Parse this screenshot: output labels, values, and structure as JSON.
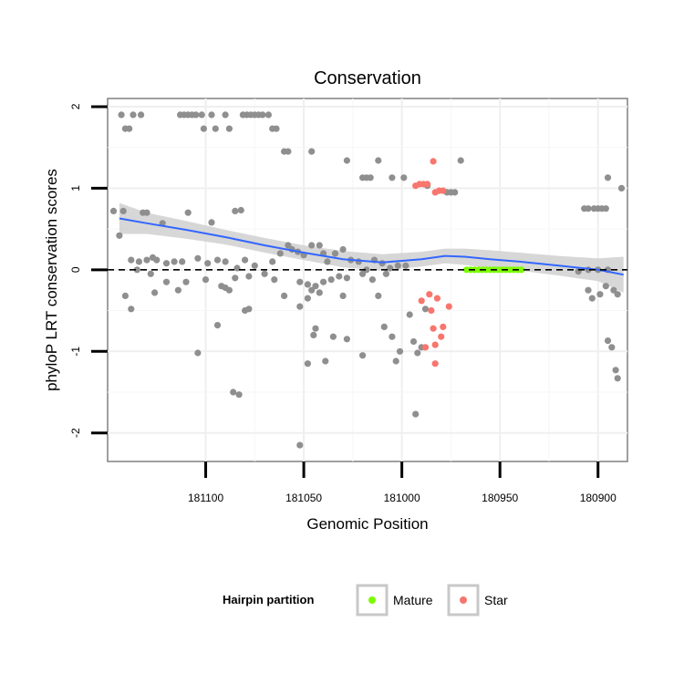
{
  "chart_data": {
    "type": "scatter",
    "title": "Conservation",
    "xlabel": "Genomic Position",
    "ylabel": "phyloP LRT conservation scores",
    "x_reversed": true,
    "xlim": [
      181150,
      180885
    ],
    "ylim": [
      -2.35,
      2.1
    ],
    "x_ticks": [
      181100,
      181050,
      181000,
      180950,
      180900
    ],
    "y_ticks": [
      -2,
      -1,
      0,
      1,
      2
    ],
    "reference_line": {
      "y": 0,
      "style": "dashed"
    },
    "legend": {
      "title": "Hairpin partition",
      "position": "bottom",
      "entries": [
        {
          "label": "Mature",
          "color": "#7CFC00"
        },
        {
          "label": "Star",
          "color": "#F8766D"
        }
      ]
    },
    "colors": {
      "other": "#8f8f8f",
      "mature": "#7CFC00",
      "star": "#F8766D",
      "smooth_line": "#3366FF",
      "ribbon": "#d0d0d0"
    },
    "smooth": {
      "x": [
        181144,
        181130,
        181110,
        181090,
        181070,
        181050,
        181030,
        181010,
        180990,
        180978,
        180968,
        180955,
        180940,
        180920,
        180900,
        180887
      ],
      "y": [
        0.63,
        0.57,
        0.49,
        0.4,
        0.3,
        0.21,
        0.13,
        0.09,
        0.13,
        0.17,
        0.16,
        0.13,
        0.1,
        0.05,
        0.0,
        -0.06
      ],
      "lower": [
        0.44,
        0.44,
        0.38,
        0.31,
        0.21,
        0.12,
        0.03,
        -0.01,
        0.04,
        0.08,
        0.06,
        0.02,
        -0.01,
        -0.07,
        -0.14,
        -0.28
      ],
      "upper": [
        0.82,
        0.7,
        0.6,
        0.49,
        0.39,
        0.3,
        0.23,
        0.19,
        0.22,
        0.26,
        0.26,
        0.24,
        0.21,
        0.17,
        0.14,
        0.16
      ]
    },
    "series": [
      {
        "name": "Other",
        "points": [
          [
            181143,
            1.9
          ],
          [
            181141,
            1.73
          ],
          [
            181139,
            1.73
          ],
          [
            181137,
            1.9
          ],
          [
            181133,
            1.9
          ],
          [
            181113,
            1.9
          ],
          [
            181111,
            1.9
          ],
          [
            181109,
            1.9
          ],
          [
            181107,
            1.9
          ],
          [
            181105,
            1.9
          ],
          [
            181102,
            1.9
          ],
          [
            181101,
            1.73
          ],
          [
            181097,
            1.9
          ],
          [
            181095,
            1.73
          ],
          [
            181090,
            1.9
          ],
          [
            181088,
            1.73
          ],
          [
            181081,
            1.9
          ],
          [
            181079,
            1.9
          ],
          [
            181077,
            1.9
          ],
          [
            181075,
            1.9
          ],
          [
            181073,
            1.9
          ],
          [
            181071,
            1.9
          ],
          [
            181068,
            1.9
          ],
          [
            181066,
            1.73
          ],
          [
            181064,
            1.73
          ],
          [
            181060,
            1.45
          ],
          [
            181058,
            1.45
          ],
          [
            181046,
            1.45
          ],
          [
            181028,
            1.34
          ],
          [
            181020,
            1.13
          ],
          [
            181018,
            1.13
          ],
          [
            181016,
            1.13
          ],
          [
            181012,
            1.34
          ],
          [
            181005,
            1.13
          ],
          [
            180999,
            1.13
          ],
          [
            180987,
            1.03
          ],
          [
            180977,
            0.95
          ],
          [
            180975,
            0.95
          ],
          [
            180973,
            0.95
          ],
          [
            180970,
            1.34
          ],
          [
            180895,
            1.13
          ],
          [
            180888,
            1.0
          ],
          [
            180907,
            0.75
          ],
          [
            180905,
            0.75
          ],
          [
            180902,
            0.75
          ],
          [
            180900,
            0.75
          ],
          [
            180898,
            0.75
          ],
          [
            180896,
            0.75
          ],
          [
            181147,
            0.72
          ],
          [
            181144,
            0.42
          ],
          [
            181142,
            0.72
          ],
          [
            181132,
            0.7
          ],
          [
            181130,
            0.7
          ],
          [
            181122,
            0.57
          ],
          [
            181109,
            0.7
          ],
          [
            181097,
            0.58
          ],
          [
            181085,
            0.72
          ],
          [
            181082,
            0.73
          ],
          [
            181138,
            0.12
          ],
          [
            181134,
            0.1
          ],
          [
            181130,
            0.12
          ],
          [
            181127,
            0.15
          ],
          [
            181125,
            0.12
          ],
          [
            181120,
            0.08
          ],
          [
            181116,
            0.1
          ],
          [
            181112,
            0.1
          ],
          [
            181104,
            0.14
          ],
          [
            181099,
            0.08
          ],
          [
            181094,
            0.12
          ],
          [
            181090,
            0.1
          ],
          [
            181084,
            0.02
          ],
          [
            181080,
            0.12
          ],
          [
            181075,
            0.05
          ],
          [
            181066,
            0.1
          ],
          [
            181062,
            0.2
          ],
          [
            181058,
            0.3
          ],
          [
            181056,
            0.25
          ],
          [
            181053,
            0.22
          ],
          [
            181050,
            0.18
          ],
          [
            181046,
            0.3
          ],
          [
            181042,
            0.3
          ],
          [
            181040,
            0.2
          ],
          [
            181038,
            0.1
          ],
          [
            181034,
            0.2
          ],
          [
            181030,
            0.25
          ],
          [
            181026,
            0.12
          ],
          [
            181022,
            0.1
          ],
          [
            181018,
            0.0
          ],
          [
            181014,
            0.12
          ],
          [
            181010,
            0.08
          ],
          [
            181006,
            0.02
          ],
          [
            181002,
            0.05
          ],
          [
            180998,
            0.05
          ],
          [
            181135,
            0.0
          ],
          [
            181128,
            -0.05
          ],
          [
            181120,
            -0.15
          ],
          [
            181110,
            -0.15
          ],
          [
            181100,
            -0.12
          ],
          [
            181092,
            -0.2
          ],
          [
            181085,
            -0.1
          ],
          [
            181078,
            -0.08
          ],
          [
            181070,
            -0.05
          ],
          [
            181065,
            -0.12
          ],
          [
            181052,
            -0.15
          ],
          [
            181048,
            -0.18
          ],
          [
            181044,
            -0.2
          ],
          [
            181040,
            -0.15
          ],
          [
            181036,
            -0.12
          ],
          [
            181032,
            -0.08
          ],
          [
            181028,
            -0.1
          ],
          [
            181020,
            -0.05
          ],
          [
            181015,
            -0.12
          ],
          [
            181008,
            -0.05
          ],
          [
            181141,
            -0.32
          ],
          [
            181138,
            -0.48
          ],
          [
            181126,
            -0.28
          ],
          [
            181114,
            -0.25
          ],
          [
            181090,
            -0.22
          ],
          [
            181088,
            -0.25
          ],
          [
            181080,
            -0.5
          ],
          [
            181078,
            -0.48
          ],
          [
            181060,
            -0.32
          ],
          [
            181052,
            -0.45
          ],
          [
            181048,
            -0.35
          ],
          [
            181046,
            -0.25
          ],
          [
            181042,
            -0.28
          ],
          [
            181030,
            -0.32
          ],
          [
            181012,
            -0.32
          ],
          [
            180996,
            -0.55
          ],
          [
            180988,
            -0.48
          ],
          [
            181009,
            -0.7
          ],
          [
            181094,
            -0.68
          ],
          [
            181044,
            -0.72
          ],
          [
            181045,
            -0.8
          ],
          [
            181035,
            -0.82
          ],
          [
            181028,
            -0.85
          ],
          [
            181005,
            -0.82
          ],
          [
            180990,
            -0.95
          ],
          [
            180994,
            -0.88
          ],
          [
            181001,
            -1.0
          ],
          [
            180992,
            -1.02
          ],
          [
            181020,
            -1.05
          ],
          [
            181003,
            -1.12
          ],
          [
            181039,
            -1.12
          ],
          [
            181048,
            -1.15
          ],
          [
            181104,
            -1.02
          ],
          [
            181086,
            -1.5
          ],
          [
            181083,
            -1.53
          ],
          [
            180993,
            -1.77
          ],
          [
            181052,
            -2.15
          ],
          [
            180905,
            -0.25
          ],
          [
            180903,
            -0.35
          ],
          [
            180899,
            -0.3
          ],
          [
            180896,
            -0.2
          ],
          [
            180892,
            -0.25
          ],
          [
            180890,
            -0.3
          ],
          [
            180895,
            -0.87
          ],
          [
            180893,
            -0.95
          ],
          [
            180891,
            -1.23
          ],
          [
            180890,
            -1.33
          ],
          [
            180910,
            -0.02
          ],
          [
            180905,
            0.0
          ],
          [
            180900,
            0.0
          ],
          [
            180895,
            0.0
          ]
        ]
      },
      {
        "name": "Mature",
        "points": [
          [
            180967,
            0
          ],
          [
            180965,
            0
          ],
          [
            180963,
            0
          ],
          [
            180961,
            0
          ],
          [
            180959,
            0
          ],
          [
            180957,
            0
          ],
          [
            180955,
            0
          ],
          [
            180953,
            0
          ],
          [
            180951,
            0
          ],
          [
            180949,
            0
          ],
          [
            180947,
            0
          ],
          [
            180945,
            0
          ],
          [
            180943,
            0
          ],
          [
            180941,
            0
          ],
          [
            180939,
            0
          ]
        ]
      },
      {
        "name": "Star",
        "points": [
          [
            180984,
            1.33
          ],
          [
            180993,
            1.03
          ],
          [
            180991,
            1.05
          ],
          [
            180989,
            1.05
          ],
          [
            180987,
            1.05
          ],
          [
            180983,
            0.95
          ],
          [
            180981,
            0.97
          ],
          [
            180979,
            0.97
          ],
          [
            180986,
            -0.3
          ],
          [
            180982,
            -0.35
          ],
          [
            180985,
            -0.5
          ],
          [
            180976,
            -0.45
          ],
          [
            180984,
            -0.72
          ],
          [
            180988,
            -0.95
          ],
          [
            180983,
            -0.92
          ],
          [
            180979,
            -0.7
          ],
          [
            180980,
            -0.82
          ],
          [
            180983,
            -1.15
          ],
          [
            180990,
            -0.38
          ]
        ]
      }
    ]
  }
}
